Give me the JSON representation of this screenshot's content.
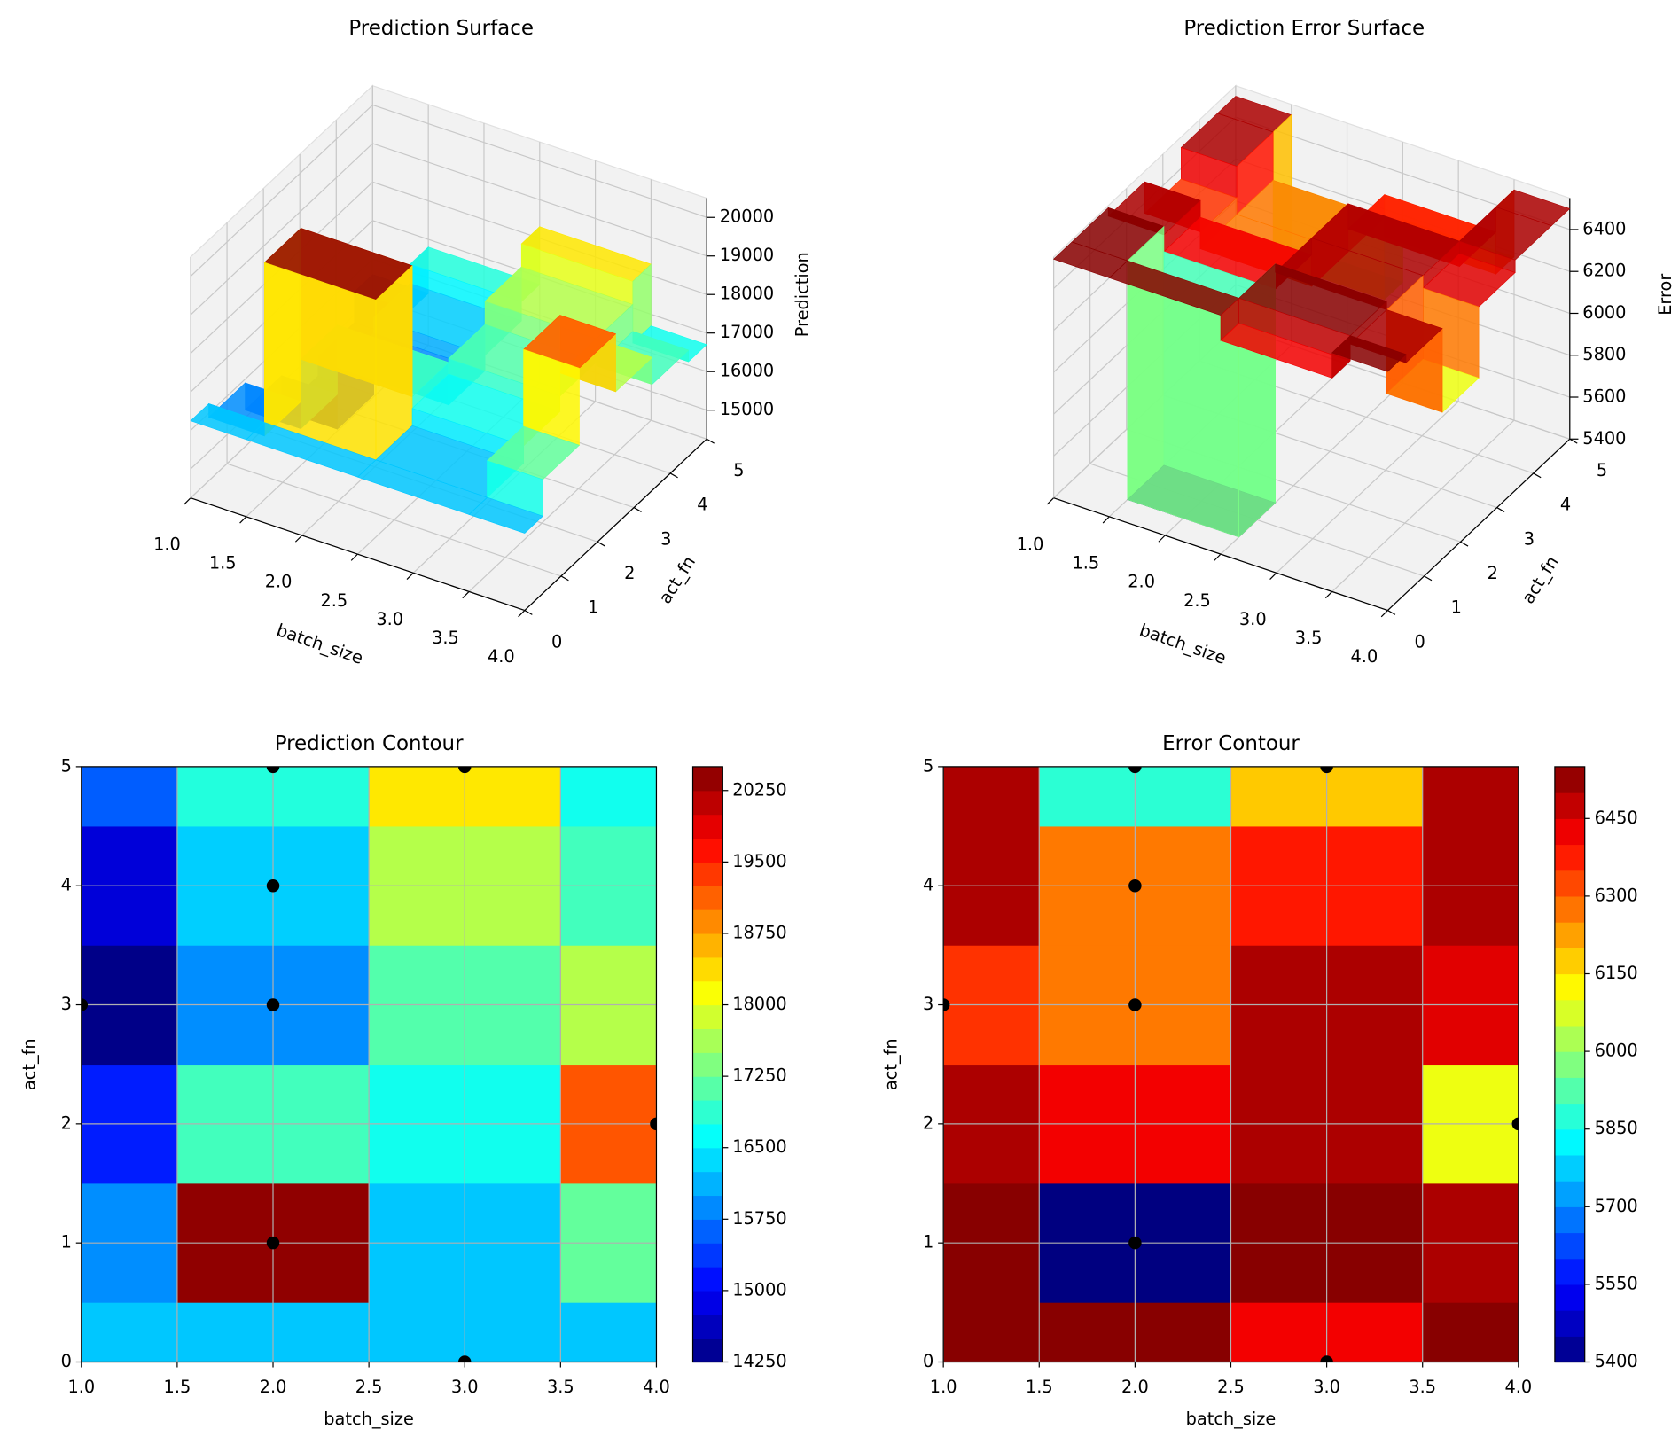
{
  "chart_data": [
    {
      "type": "surface3d",
      "title": "Prediction Surface",
      "xlabel": "batch_size",
      "ylabel": "act_fn",
      "zlabel": "Prediction",
      "x": [
        1,
        2,
        3,
        4
      ],
      "y": [
        0,
        1,
        2,
        3,
        4,
        5
      ],
      "values": [
        [
          16250,
          16250,
          16250,
          16250
        ],
        [
          15900,
          20400,
          16250,
          17200
        ],
        [
          15200,
          17000,
          16700,
          19200
        ],
        [
          14300,
          15900,
          17100,
          17700
        ],
        [
          14800,
          16300,
          17700,
          17000
        ],
        [
          15600,
          16800,
          18300,
          16700
        ]
      ],
      "xlim": [
        1,
        4
      ],
      "ylim": [
        0,
        5
      ],
      "zlim": [
        14250,
        20500
      ],
      "xticks": [
        {
          "value": 1,
          "label": "1.0"
        },
        {
          "value": 1.5,
          "label": "1.5"
        },
        {
          "value": 2,
          "label": "2.0"
        },
        {
          "value": 2.5,
          "label": "2.5"
        },
        {
          "value": 3,
          "label": "3.0"
        },
        {
          "value": 3.5,
          "label": "3.5"
        },
        {
          "value": 4,
          "label": "4.0"
        }
      ],
      "yticks": [
        0,
        1,
        2,
        3,
        4,
        5
      ],
      "zticks": [
        15000,
        16000,
        17000,
        18000,
        19000,
        20000
      ],
      "colormap": "jet"
    },
    {
      "type": "surface3d",
      "title": "Prediction Error Surface",
      "xlabel": "batch_size",
      "ylabel": "act_fn",
      "zlabel": "Error",
      "x": [
        1,
        2,
        3,
        4
      ],
      "y": [
        0,
        1,
        2,
        3,
        4,
        5
      ],
      "values": [
        [
          6540,
          6540,
          6420,
          6540
        ],
        [
          6540,
          5400,
          6540,
          6500
        ],
        [
          6500,
          6420,
          6500,
          6100
        ],
        [
          6350,
          6270,
          6500,
          6440
        ],
        [
          6500,
          6270,
          6380,
          6500
        ],
        [
          6500,
          5880,
          6180,
          6500
        ]
      ],
      "xlim": [
        1,
        4
      ],
      "ylim": [
        0,
        5
      ],
      "zlim": [
        5400,
        6550
      ],
      "xticks": [
        {
          "value": 1,
          "label": "1.0"
        },
        {
          "value": 1.5,
          "label": "1.5"
        },
        {
          "value": 2,
          "label": "2.0"
        },
        {
          "value": 2.5,
          "label": "2.5"
        },
        {
          "value": 3,
          "label": "3.0"
        },
        {
          "value": 3.5,
          "label": "3.5"
        },
        {
          "value": 4,
          "label": "4.0"
        }
      ],
      "yticks": [
        0,
        1,
        2,
        3,
        4,
        5
      ],
      "zticks": [
        5400,
        5600,
        5800,
        6000,
        6200,
        6400
      ],
      "colormap": "jet"
    },
    {
      "type": "contour",
      "title": "Prediction Contour",
      "xlabel": "batch_size",
      "ylabel": "act_fn",
      "x": [
        1,
        2,
        3,
        4
      ],
      "y": [
        0,
        1,
        2,
        3,
        4,
        5
      ],
      "values": [
        [
          16250,
          16250,
          16250,
          16250
        ],
        [
          15900,
          20400,
          16250,
          17200
        ],
        [
          15200,
          17000,
          16700,
          19200
        ],
        [
          14300,
          15900,
          17100,
          17700
        ],
        [
          14800,
          16300,
          17700,
          17000
        ],
        [
          15600,
          16800,
          18300,
          16700
        ]
      ],
      "xlim": [
        1,
        4
      ],
      "ylim": [
        0,
        5
      ],
      "xticks": [
        {
          "value": 1,
          "label": "1.0"
        },
        {
          "value": 1.5,
          "label": "1.5"
        },
        {
          "value": 2,
          "label": "2.0"
        },
        {
          "value": 2.5,
          "label": "2.5"
        },
        {
          "value": 3,
          "label": "3.0"
        },
        {
          "value": 3.5,
          "label": "3.5"
        },
        {
          "value": 4,
          "label": "4.0"
        }
      ],
      "yticks": [
        0,
        1,
        2,
        3,
        4,
        5
      ],
      "grid": true,
      "colormap": "jet",
      "colorbar": {
        "lim": [
          14250,
          20500
        ],
        "ticks": [
          14250,
          15000,
          15750,
          16500,
          17250,
          18000,
          18750,
          19500,
          20250
        ],
        "level_step": 250
      },
      "points": {
        "x": [
          2,
          3,
          2,
          1,
          2,
          4,
          2,
          3
        ],
        "y": [
          5,
          5,
          4,
          3,
          3,
          2,
          1,
          0
        ],
        "color": "#000000"
      }
    },
    {
      "type": "contour",
      "title": "Error Contour",
      "xlabel": "batch_size",
      "ylabel": "act_fn",
      "x": [
        1,
        2,
        3,
        4
      ],
      "y": [
        0,
        1,
        2,
        3,
        4,
        5
      ],
      "values": [
        [
          6540,
          6540,
          6420,
          6540
        ],
        [
          6540,
          5400,
          6540,
          6500
        ],
        [
          6500,
          6420,
          6500,
          6100
        ],
        [
          6350,
          6270,
          6500,
          6440
        ],
        [
          6500,
          6270,
          6380,
          6500
        ],
        [
          6500,
          5880,
          6180,
          6500
        ]
      ],
      "xlim": [
        1,
        4
      ],
      "ylim": [
        0,
        5
      ],
      "xticks": [
        {
          "value": 1,
          "label": "1.0"
        },
        {
          "value": 1.5,
          "label": "1.5"
        },
        {
          "value": 2,
          "label": "2.0"
        },
        {
          "value": 2.5,
          "label": "2.5"
        },
        {
          "value": 3,
          "label": "3.0"
        },
        {
          "value": 3.5,
          "label": "3.5"
        },
        {
          "value": 4,
          "label": "4.0"
        }
      ],
      "yticks": [
        0,
        1,
        2,
        3,
        4,
        5
      ],
      "grid": true,
      "colormap": "jet",
      "colorbar": {
        "lim": [
          5400,
          6550
        ],
        "ticks": [
          5400,
          5550,
          5700,
          5850,
          6000,
          6150,
          6300,
          6450
        ],
        "level_step": 50
      },
      "points": {
        "x": [
          2,
          3,
          2,
          1,
          2,
          4,
          2,
          3
        ],
        "y": [
          5,
          5,
          4,
          3,
          3,
          2,
          1,
          0
        ],
        "color": "#000000"
      }
    }
  ]
}
